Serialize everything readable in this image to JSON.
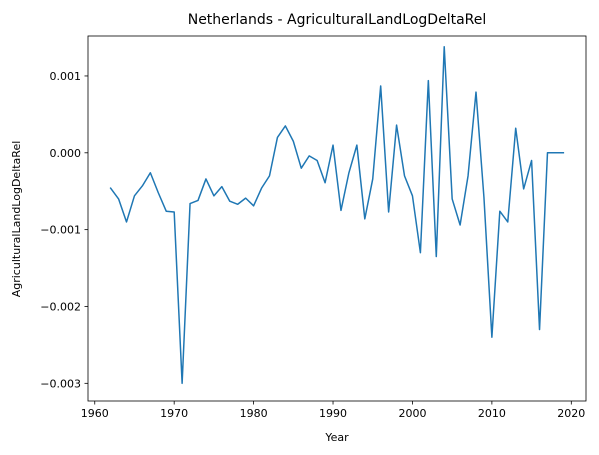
{
  "chart_data": {
    "type": "line",
    "title": "Netherlands - AgriculturalLandLogDeltaRel",
    "xlabel": "Year",
    "ylabel": "AgriculturalLandLogDeltaRel",
    "xlim": [
      1959.15,
      2021.85
    ],
    "ylim": [
      -0.00323,
      0.00152
    ],
    "xticks": [
      1960,
      1970,
      1980,
      1990,
      2000,
      2010,
      2020
    ],
    "yticks": [
      -0.003,
      -0.002,
      -0.001,
      0.0,
      0.001
    ],
    "xtick_labels": [
      "1960",
      "1970",
      "1980",
      "1990",
      "2000",
      "2010",
      "2020"
    ],
    "ytick_labels": [
      "−0.003",
      "−0.002",
      "−0.001",
      "0.000",
      "0.001"
    ],
    "grid": false,
    "series": [
      {
        "color": "#1f77b4",
        "x": [
          1962,
          1963,
          1964,
          1965,
          1966,
          1967,
          1968,
          1969,
          1970,
          1971,
          1972,
          1973,
          1974,
          1975,
          1976,
          1977,
          1978,
          1979,
          1980,
          1981,
          1982,
          1983,
          1984,
          1985,
          1986,
          1987,
          1988,
          1989,
          1990,
          1991,
          1992,
          1993,
          1994,
          1995,
          1996,
          1997,
          1998,
          1999,
          2000,
          2001,
          2002,
          2003,
          2004,
          2005,
          2006,
          2007,
          2008,
          2009,
          2010,
          2011,
          2012,
          2013,
          2014,
          2015,
          2016,
          2017,
          2018,
          2019
        ],
        "y": [
          -0.00046,
          -0.0006,
          -0.0009,
          -0.00056,
          -0.00043,
          -0.00026,
          -0.00052,
          -0.00076,
          -0.00077,
          -0.003,
          -0.00066,
          -0.00062,
          -0.00034,
          -0.00056,
          -0.00044,
          -0.00063,
          -0.00067,
          -0.00059,
          -0.00069,
          -0.00046,
          -0.0003,
          0.0002,
          0.00035,
          0.00015,
          -0.0002,
          -4e-05,
          -0.0001,
          -0.00039,
          0.0001,
          -0.00075,
          -0.00026,
          0.0001,
          -0.00086,
          -0.00034,
          0.00087,
          -0.00077,
          0.00036,
          -0.0003,
          -0.00056,
          -0.0013,
          0.00094,
          -0.00135,
          0.00138,
          -0.0006,
          -0.00094,
          -0.0003,
          0.00079,
          -0.00058,
          -0.0024,
          -0.00076,
          -0.0009,
          0.00032,
          -0.00047,
          -0.0001,
          -0.0023,
          0.0,
          0.0,
          0.0
        ]
      }
    ]
  }
}
